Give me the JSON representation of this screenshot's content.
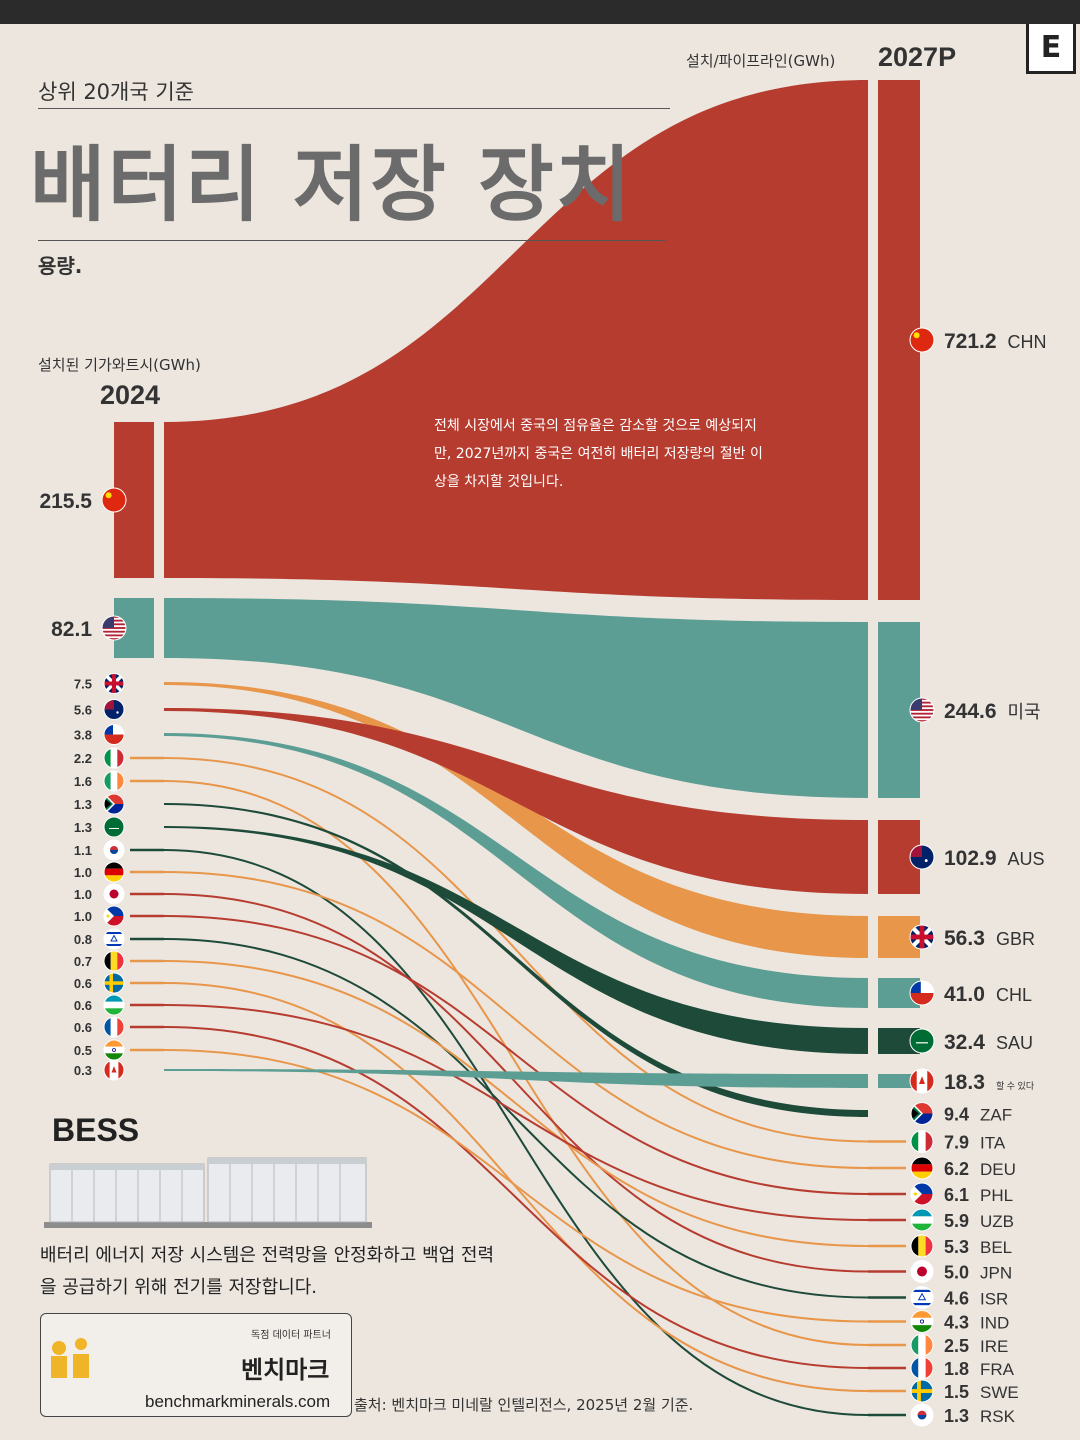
{
  "header": {
    "subtitle": "상위 20개국 기준",
    "title": "배터리 저장 장치",
    "subunit": "용량.",
    "logo": "E"
  },
  "axes": {
    "left_label": "설치된 기가와트시(GWh)",
    "left_year": "2024",
    "right_label": "설치/파이프라인(GWh)",
    "right_year": "2027P"
  },
  "annotation": "전체 시장에서 중국의 점유율은 감소할 것으로 예상되지만, 2027년까지 중국은 여전히 배터리 저장량의 절반 이상을 차지할 것입니다.",
  "bess": {
    "title": "BESS",
    "description": "배터리 에너지 저장 시스템은 전력망을 안정화하고 백업 전력을 공급하기 위해 전기를 저장합니다."
  },
  "partner": {
    "label": "독점 데이터 파트너",
    "name": "벤치마크",
    "url": "benchmarkminerals.com"
  },
  "source": "출처: 벤치마크 미네랄 인텔리전스, 2025년 2월 기준.",
  "colors": {
    "red": "#b73c30",
    "teal": "#5d9e94",
    "orange": "#e8964a",
    "dark_green": "#1e4a3a",
    "background": "#ece6df"
  },
  "chart_data": {
    "type": "sankey",
    "title": "배터리 저장 장치",
    "left_axis": "설치된 기가와트시(GWh)",
    "right_axis": "설치/파이프라인(GWh)",
    "countries": [
      {
        "flag": "china-flag-icon",
        "v2024": "215.5",
        "v2027": "721.2",
        "code": "CHN",
        "color": "red"
      },
      {
        "flag": "usa-flag-icon",
        "v2024": "82.1",
        "v2027": "244.6",
        "code": "미국",
        "color": "teal"
      },
      {
        "flag": "uk-flag-icon",
        "v2024": "7.5",
        "v2027": "56.3",
        "code": "GBR",
        "color": "orange"
      },
      {
        "flag": "australia-flag-icon",
        "v2024": "5.6",
        "v2027": "102.9",
        "code": "AUS",
        "color": "red"
      },
      {
        "flag": "chile-flag-icon",
        "v2024": "3.8",
        "v2027": "41.0",
        "code": "CHL",
        "color": "teal"
      },
      {
        "flag": "italy-flag-icon",
        "v2024": "2.2",
        "v2027": "7.9",
        "code": "ITA",
        "color": "orange"
      },
      {
        "flag": "ireland-flag-icon",
        "v2024": "1.6",
        "v2027": "2.5",
        "code": "IRE",
        "color": "orange"
      },
      {
        "flag": "south-africa-flag-icon",
        "v2024": "1.3",
        "v2027": "9.4",
        "code": "ZAF",
        "color": "dark_green"
      },
      {
        "flag": "saudi-flag-icon",
        "v2024": "1.3",
        "v2027": "32.4",
        "code": "SAU",
        "color": "dark_green"
      },
      {
        "flag": "korea-flag-icon",
        "v2024": "1.1",
        "v2027": "1.3",
        "code": "RSK",
        "color": "dark_green"
      },
      {
        "flag": "germany-flag-icon",
        "v2024": "1.0",
        "v2027": "6.2",
        "code": "DEU",
        "color": "orange"
      },
      {
        "flag": "japan-flag-icon",
        "v2024": "1.0",
        "v2027": "5.0",
        "code": "JPN",
        "color": "red"
      },
      {
        "flag": "philippines-flag-icon",
        "v2024": "1.0",
        "v2027": "6.1",
        "code": "PHL",
        "color": "red"
      },
      {
        "flag": "israel-flag-icon",
        "v2024": "0.8",
        "v2027": "4.6",
        "code": "ISR",
        "color": "dark_green"
      },
      {
        "flag": "belgium-flag-icon",
        "v2024": "0.7",
        "v2027": "5.3",
        "code": "BEL",
        "color": "orange"
      },
      {
        "flag": "sweden-flag-icon",
        "v2024": "0.6",
        "v2027": "1.5",
        "code": "SWE",
        "color": "orange"
      },
      {
        "flag": "uzbekistan-flag-icon",
        "v2024": "0.6",
        "v2027": "5.9",
        "code": "UZB",
        "color": "red"
      },
      {
        "flag": "france-flag-icon",
        "v2024": "0.6",
        "v2027": "1.8",
        "code": "FRA",
        "color": "red"
      },
      {
        "flag": "india-flag-icon",
        "v2024": "0.5",
        "v2027": "4.3",
        "code": "IND",
        "color": "orange"
      },
      {
        "flag": "canada-flag-icon",
        "v2024": "0.3",
        "v2027": "18.3",
        "code": "할 수 있다",
        "color": "teal"
      }
    ]
  }
}
